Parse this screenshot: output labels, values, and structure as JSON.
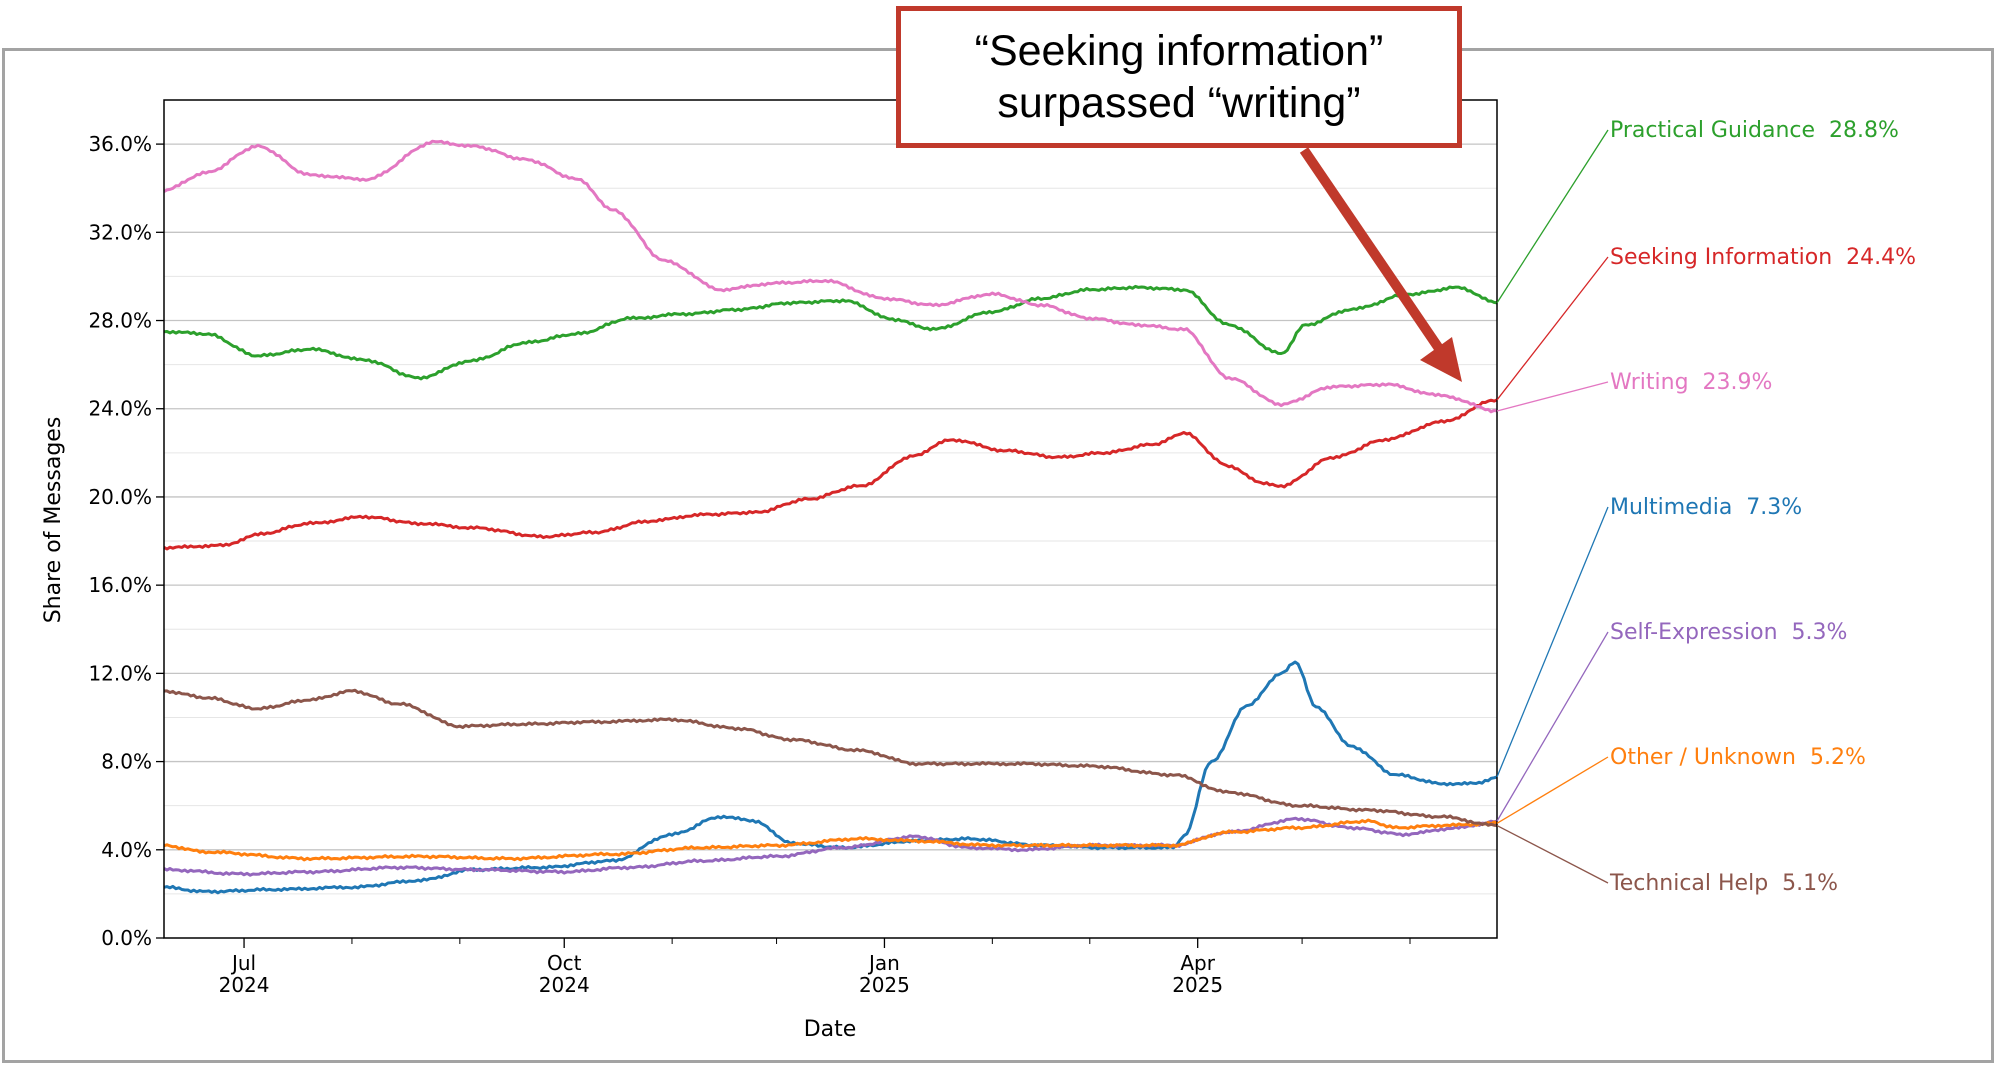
{
  "callout": {
    "line1": "“Seeking information”",
    "line2": "surpassed “writing”"
  },
  "chart_data": {
    "type": "line",
    "title": "",
    "xlabel": "Date",
    "ylabel": "Share of Messages",
    "xlim": [
      "2024-06-08",
      "2025-06-26"
    ],
    "ylim": [
      0,
      38
    ],
    "y_ticks": [
      0,
      4,
      8,
      12,
      16,
      20,
      24,
      28,
      32,
      36
    ],
    "y_tick_labels": [
      "0.0%",
      "4.0%",
      "8.0%",
      "12.0%",
      "16.0%",
      "20.0%",
      "24.0%",
      "28.0%",
      "32.0%",
      "36.0%"
    ],
    "x_major_ticks": [
      {
        "date": "2024-07-01",
        "label1": "Jul",
        "label2": "2024"
      },
      {
        "date": "2024-10-01",
        "label1": "Oct",
        "label2": "2024"
      },
      {
        "date": "2025-01-01",
        "label1": "Jan",
        "label2": "2025"
      },
      {
        "date": "2025-04-01",
        "label1": "Apr",
        "label2": "2025"
      }
    ],
    "x_minor_ticks": [
      "2024-08-01",
      "2024-09-01",
      "2024-11-01",
      "2024-12-01",
      "2025-02-01",
      "2025-03-01",
      "2025-05-01",
      "2025-06-01"
    ],
    "grid": "horizontal",
    "series": [
      {
        "name": "Practical Guidance",
        "end_label": "28.8%",
        "color": "#2ca02c",
        "x": [
          "2024-06-08",
          "2024-06-20",
          "2024-07-05",
          "2024-07-20",
          "2024-08-05",
          "2024-08-20",
          "2024-09-05",
          "2024-09-20",
          "2024-10-05",
          "2024-10-20",
          "2024-11-05",
          "2024-11-20",
          "2024-12-05",
          "2024-12-20",
          "2025-01-05",
          "2025-01-15",
          "2025-02-01",
          "2025-02-15",
          "2025-03-01",
          "2025-03-15",
          "2025-03-28",
          "2025-04-10",
          "2025-04-25",
          "2025-05-02",
          "2025-05-15",
          "2025-06-01",
          "2025-06-15",
          "2025-06-26"
        ],
        "y": [
          27.5,
          27.4,
          26.4,
          26.7,
          26.2,
          25.4,
          26.2,
          27.0,
          27.4,
          28.1,
          28.3,
          28.5,
          28.8,
          28.9,
          28.0,
          27.6,
          28.4,
          29.0,
          29.4,
          29.5,
          29.4,
          27.8,
          26.5,
          27.8,
          28.5,
          29.2,
          29.5,
          28.8
        ]
      },
      {
        "name": "Seeking Information",
        "end_label": "24.4%",
        "color": "#d62728",
        "x": [
          "2024-06-08",
          "2024-06-25",
          "2024-07-05",
          "2024-07-20",
          "2024-08-05",
          "2024-08-20",
          "2024-09-05",
          "2024-09-25",
          "2024-10-10",
          "2024-10-25",
          "2024-11-10",
          "2024-11-25",
          "2024-12-10",
          "2024-12-25",
          "2025-01-10",
          "2025-01-20",
          "2025-02-05",
          "2025-02-20",
          "2025-03-05",
          "2025-03-20",
          "2025-03-28",
          "2025-04-10",
          "2025-04-20",
          "2025-04-25",
          "2025-05-10",
          "2025-05-25",
          "2025-06-10",
          "2025-06-26"
        ],
        "y": [
          17.7,
          17.8,
          18.3,
          18.8,
          19.1,
          18.8,
          18.6,
          18.2,
          18.4,
          18.9,
          19.2,
          19.3,
          19.9,
          20.5,
          21.9,
          22.6,
          22.1,
          21.8,
          22.0,
          22.4,
          22.9,
          21.4,
          20.6,
          20.5,
          21.8,
          22.6,
          23.4,
          24.4
        ]
      },
      {
        "name": "Writing",
        "end_label": "23.9%",
        "color": "#e377c2",
        "x": [
          "2024-06-08",
          "2024-06-20",
          "2024-07-05",
          "2024-07-20",
          "2024-08-05",
          "2024-08-25",
          "2024-09-05",
          "2024-09-20",
          "2024-10-05",
          "2024-10-15",
          "2024-10-30",
          "2024-11-15",
          "2024-12-01",
          "2024-12-15",
          "2025-01-01",
          "2025-01-15",
          "2025-02-01",
          "2025-02-15",
          "2025-03-01",
          "2025-03-15",
          "2025-03-28",
          "2025-04-10",
          "2025-04-25",
          "2025-05-10",
          "2025-05-25",
          "2025-06-10",
          "2025-06-26"
        ],
        "y": [
          33.9,
          34.7,
          35.9,
          34.6,
          34.4,
          36.1,
          35.9,
          35.3,
          34.4,
          33.0,
          30.7,
          29.4,
          29.7,
          29.8,
          29.0,
          28.7,
          29.2,
          28.7,
          28.1,
          27.8,
          27.6,
          25.4,
          24.2,
          25.0,
          25.1,
          24.6,
          23.9
        ]
      },
      {
        "name": "Multimedia",
        "end_label": "7.3%",
        "color": "#1f77b4",
        "x": [
          "2024-06-08",
          "2024-06-20",
          "2024-07-10",
          "2024-08-01",
          "2024-08-20",
          "2024-09-05",
          "2024-09-25",
          "2024-10-15",
          "2024-11-01",
          "2024-11-15",
          "2024-11-25",
          "2024-12-05",
          "2024-12-20",
          "2025-01-10",
          "2025-01-25",
          "2025-02-15",
          "2025-03-05",
          "2025-03-25",
          "2025-03-28",
          "2025-04-05",
          "2025-04-15",
          "2025-04-25",
          "2025-04-29",
          "2025-05-05",
          "2025-05-15",
          "2025-05-28",
          "2025-06-10",
          "2025-06-20",
          "2025-06-26"
        ],
        "y": [
          2.3,
          2.1,
          2.2,
          2.3,
          2.6,
          3.1,
          3.2,
          3.5,
          4.7,
          5.5,
          5.3,
          4.3,
          4.1,
          4.4,
          4.5,
          4.2,
          4.1,
          4.1,
          4.6,
          8.0,
          10.5,
          12.0,
          12.5,
          10.5,
          8.7,
          7.4,
          7.0,
          7.0,
          7.3
        ]
      },
      {
        "name": "Self-Expression",
        "end_label": "5.3%",
        "color": "#9467bd",
        "x": [
          "2024-06-08",
          "2024-07-01",
          "2024-07-20",
          "2024-08-15",
          "2024-09-05",
          "2024-10-01",
          "2024-10-20",
          "2024-11-10",
          "2024-12-01",
          "2024-12-20",
          "2025-01-10",
          "2025-01-25",
          "2025-02-10",
          "2025-03-01",
          "2025-03-25",
          "2025-04-10",
          "2025-04-30",
          "2025-05-15",
          "2025-05-30",
          "2025-06-15",
          "2025-06-26"
        ],
        "y": [
          3.1,
          2.9,
          3.0,
          3.2,
          3.1,
          3.0,
          3.2,
          3.5,
          3.7,
          4.1,
          4.6,
          4.1,
          4.0,
          4.2,
          4.2,
          4.8,
          5.4,
          5.0,
          4.7,
          5.0,
          5.3
        ]
      },
      {
        "name": "Other / Unknown",
        "end_label": "5.2%",
        "color": "#ff7f0e",
        "x": [
          "2024-06-08",
          "2024-06-20",
          "2024-07-20",
          "2024-08-20",
          "2024-09-15",
          "2024-10-15",
          "2024-11-10",
          "2024-12-01",
          "2024-12-25",
          "2025-01-10",
          "2025-02-01",
          "2025-03-01",
          "2025-03-25",
          "2025-04-10",
          "2025-04-30",
          "2025-05-20",
          "2025-05-28",
          "2025-06-10",
          "2025-06-26"
        ],
        "y": [
          4.2,
          3.9,
          3.6,
          3.7,
          3.6,
          3.8,
          4.1,
          4.2,
          4.5,
          4.4,
          4.2,
          4.2,
          4.2,
          4.8,
          5.0,
          5.3,
          5.0,
          5.1,
          5.2
        ]
      },
      {
        "name": "Technical Help",
        "end_label": "5.1%",
        "color": "#8c564b",
        "x": [
          "2024-06-08",
          "2024-06-20",
          "2024-07-05",
          "2024-07-20",
          "2024-08-01",
          "2024-08-15",
          "2024-09-01",
          "2024-09-20",
          "2024-10-10",
          "2024-11-01",
          "2024-11-20",
          "2024-12-05",
          "2024-12-25",
          "2025-01-10",
          "2025-01-25",
          "2025-02-10",
          "2025-03-01",
          "2025-03-25",
          "2025-04-10",
          "2025-04-30",
          "2025-05-20",
          "2025-06-10",
          "2025-06-26"
        ],
        "y": [
          11.2,
          10.9,
          10.4,
          10.8,
          11.2,
          10.6,
          9.6,
          9.7,
          9.8,
          9.9,
          9.5,
          9.0,
          8.5,
          7.9,
          7.9,
          7.9,
          7.8,
          7.4,
          6.6,
          6.0,
          5.8,
          5.5,
          5.1
        ]
      }
    ]
  }
}
